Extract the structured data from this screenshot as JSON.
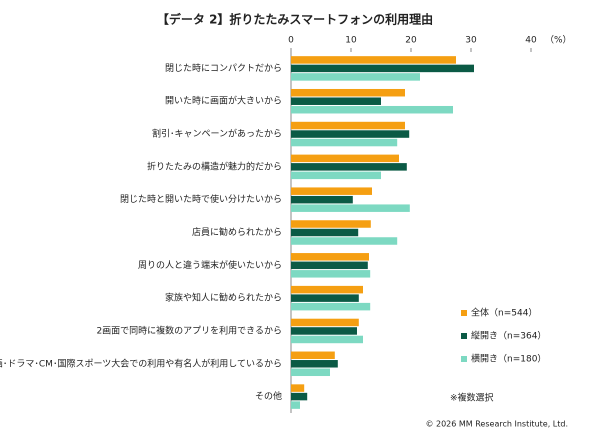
{
  "chart_data": {
    "type": "bar",
    "orientation": "horizontal",
    "title": "【データ 2】折りたたみスマートフォンの利用理由",
    "x_unit": "（%）",
    "categories": [
      "閉じた時にコンパクトだから",
      "開いた時に画面が大きいから",
      "割引･キャンペーンがあったから",
      "折りたたみの構造が魅力的だから",
      "閉じた時と開いた時で使い分けたいから",
      "店員に勧められたから",
      "周りの人と違う端末が使いたいから",
      "家族や知人に勧められたから",
      "2画面で同時に複数のアプリを利用できるから",
      "映画･ドラマ･CM･国際スポーツ大会での利用や有名人が利用しているから",
      "その他"
    ],
    "series": [
      {
        "name": "全体（n=544）",
        "color": "#f59f12",
        "values": [
          27.5,
          19,
          19,
          18,
          13.5,
          13.3,
          13,
          12,
          11.3,
          7.3,
          2.2
        ]
      },
      {
        "name": "縦開き（n=364）",
        "color": "#0b5a45",
        "values": [
          30.5,
          15,
          19.7,
          19.3,
          10.3,
          11.2,
          12.8,
          11.3,
          11,
          7.8,
          2.7
        ]
      },
      {
        "name": "横開き（n=180）",
        "color": "#7dd9c2",
        "values": [
          21.5,
          27,
          17.7,
          15,
          19.8,
          17.7,
          13.2,
          13.2,
          12,
          6.5,
          1.5
        ]
      }
    ],
    "xlim": [
      0,
      40
    ],
    "xticks": [
      0,
      10,
      20,
      30,
      40
    ],
    "note": "※複数選択",
    "copyright": "© 2026 MM Research Institute, Ltd."
  }
}
